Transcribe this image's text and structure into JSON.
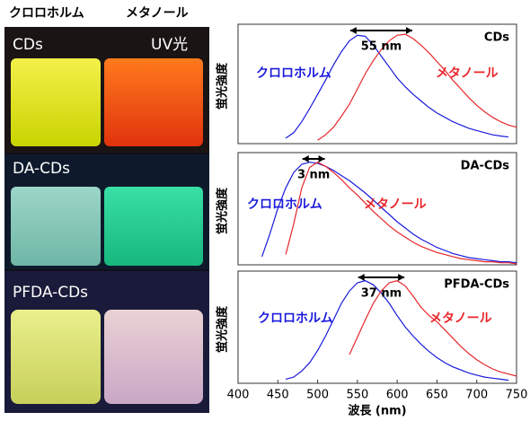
{
  "photo": {
    "header_left": "クロロホルム",
    "header_right": "メタノール",
    "labels": [
      "CDs",
      "DA-CDs",
      "PFDA-CDs"
    ],
    "uv_label": "UV光"
  },
  "chart_data": [
    {
      "type": "line",
      "title": "CDs",
      "ylabel": "蛍光強度",
      "annotation": "55 nm",
      "xlim": [
        400,
        750
      ],
      "ylim": [
        0,
        1.05
      ],
      "x": [
        430,
        440,
        450,
        460,
        470,
        480,
        490,
        500,
        510,
        520,
        530,
        540,
        550,
        560,
        570,
        580,
        590,
        600,
        610,
        620,
        630,
        640,
        650,
        660,
        670,
        680,
        690,
        700,
        710,
        720,
        730,
        740,
        750
      ],
      "series": [
        {
          "name": "クロロホルム",
          "color": "#1a1adb",
          "values": [
            null,
            null,
            null,
            0.05,
            0.1,
            0.2,
            0.32,
            0.45,
            0.58,
            0.72,
            0.84,
            0.94,
            0.99,
            0.98,
            0.9,
            0.8,
            0.7,
            0.6,
            0.52,
            0.45,
            0.39,
            0.33,
            0.28,
            0.24,
            0.2,
            0.17,
            0.14,
            0.12,
            0.1,
            0.08,
            0.07,
            0.06,
            null
          ]
        },
        {
          "name": "メタノール",
          "color": "#e8262b",
          "values": [
            null,
            null,
            null,
            null,
            null,
            null,
            null,
            0.03,
            0.08,
            0.15,
            0.25,
            0.36,
            0.5,
            0.64,
            0.76,
            0.86,
            0.94,
            0.99,
            1.0,
            0.96,
            0.9,
            0.83,
            0.75,
            0.67,
            0.58,
            0.5,
            0.42,
            0.35,
            0.29,
            0.24,
            0.2,
            0.17,
            0.15
          ]
        }
      ]
    },
    {
      "type": "line",
      "title": "DA-CDs",
      "ylabel": "蛍光強度",
      "annotation": "3 nm",
      "xlim": [
        400,
        750
      ],
      "ylim": [
        0,
        1.05
      ],
      "x": [
        430,
        440,
        450,
        460,
        470,
        480,
        490,
        500,
        510,
        520,
        530,
        540,
        550,
        560,
        570,
        580,
        590,
        600,
        610,
        620,
        630,
        640,
        650,
        660,
        670,
        680,
        690,
        700,
        710,
        720,
        730,
        740,
        750
      ],
      "series": [
        {
          "name": "クロロホルム",
          "color": "#1a1adb",
          "values": [
            0.08,
            0.3,
            0.55,
            0.75,
            0.9,
            0.98,
            1.0,
            0.99,
            0.96,
            0.92,
            0.87,
            0.82,
            0.76,
            0.7,
            0.63,
            0.56,
            0.49,
            0.42,
            0.36,
            0.3,
            0.25,
            0.21,
            0.17,
            0.14,
            0.11,
            0.09,
            0.07,
            0.06,
            0.05,
            0.04,
            0.03,
            0.03,
            0.02
          ]
        },
        {
          "name": "メタノール",
          "color": "#e8262b",
          "values": [
            null,
            null,
            null,
            0.1,
            0.4,
            0.75,
            0.95,
            1.0,
            0.96,
            0.9,
            0.83,
            0.75,
            0.68,
            0.6,
            0.52,
            0.45,
            0.38,
            0.32,
            0.27,
            0.22,
            0.18,
            0.15,
            0.12,
            0.1,
            0.08,
            0.06,
            0.05,
            0.04,
            0.03,
            0.03,
            0.02,
            0.02,
            0.01
          ]
        }
      ]
    },
    {
      "type": "line",
      "title": "PFDA-CDs",
      "ylabel": "蛍光強度",
      "annotation": "37 nm",
      "xlabel": "波長 (nm)",
      "xlim": [
        400,
        750
      ],
      "ylim": [
        0,
        1.05
      ],
      "xticks": [
        400,
        450,
        500,
        550,
        600,
        650,
        700,
        750
      ],
      "x": [
        430,
        440,
        450,
        460,
        470,
        480,
        490,
        500,
        510,
        520,
        530,
        540,
        550,
        560,
        570,
        580,
        590,
        600,
        610,
        620,
        630,
        640,
        650,
        660,
        670,
        680,
        690,
        700,
        710,
        720,
        730,
        740,
        750
      ],
      "series": [
        {
          "name": "クロロホルム",
          "color": "#1a1adb",
          "values": [
            null,
            null,
            null,
            0.04,
            0.06,
            0.12,
            0.2,
            0.32,
            0.46,
            0.62,
            0.78,
            0.9,
            0.98,
            1.0,
            0.96,
            0.88,
            0.78,
            0.66,
            0.55,
            0.46,
            0.38,
            0.31,
            0.25,
            0.2,
            0.16,
            0.13,
            0.1,
            0.08,
            0.06,
            0.05,
            0.04,
            0.03,
            null
          ]
        },
        {
          "name": "メタノール",
          "color": "#e8262b",
          "values": [
            null,
            null,
            null,
            null,
            null,
            null,
            null,
            null,
            null,
            null,
            null,
            0.28,
            0.45,
            0.62,
            0.78,
            0.9,
            0.98,
            1.0,
            0.95,
            0.85,
            0.74,
            0.66,
            0.6,
            0.52,
            0.44,
            0.36,
            0.29,
            0.23,
            0.18,
            0.14,
            0.11,
            0.09,
            0.07
          ]
        }
      ]
    }
  ]
}
